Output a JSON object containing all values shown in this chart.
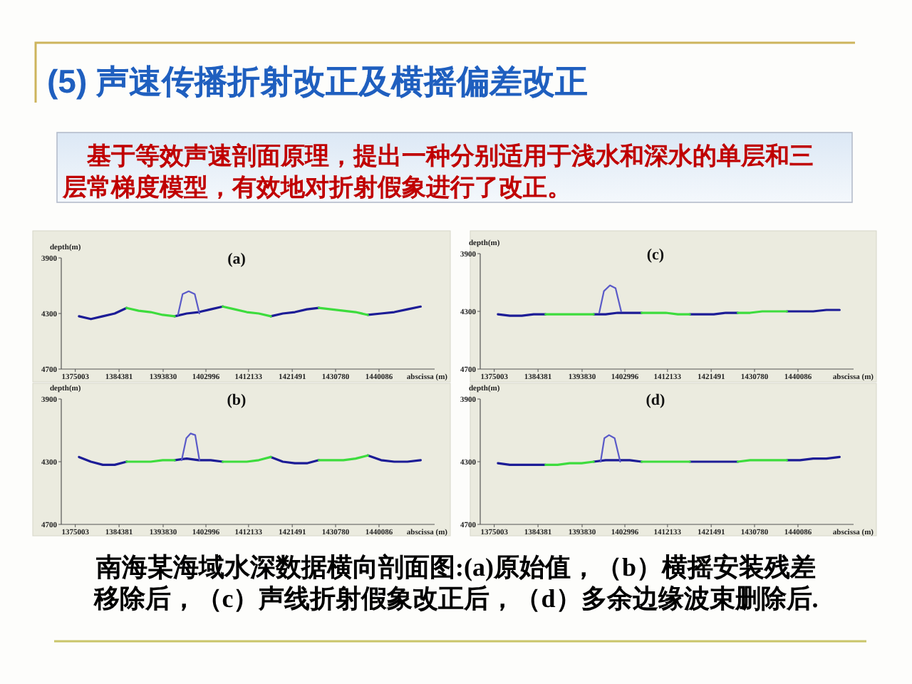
{
  "chart_data": [
    {
      "type": "other",
      "title": "(5) 声速传播折射改正及横摇偏差改正",
      "annotations": [
        "基于等效声速剖面原理，提出一种分别适用于浅水和深水的单层和三层常梯度模型，有效地对折射假象进行了改正。"
      ]
    },
    {
      "type": "line",
      "title": "(a)",
      "xlabel": "abscissa (m)",
      "ylabel": "depth(m)",
      "xlim": [
        1372000,
        1452000
      ],
      "xticks": [
        1375003,
        1384381,
        1393830,
        1402996,
        1412133,
        1421491,
        1430780,
        1440086
      ],
      "ylim": [
        4700,
        3900
      ],
      "yticks": [
        3900,
        4300,
        4700
      ],
      "x": [
        1375800,
        1378350,
        1380900,
        1383450,
        1386000,
        1388575,
        1391150,
        1393725,
        1396300,
        1398875,
        1401450,
        1404025,
        1406600,
        1409175,
        1411750,
        1414325,
        1416900,
        1419475,
        1422050,
        1424625,
        1427200,
        1429825,
        1432450,
        1435075,
        1437700,
        1440525,
        1443350,
        1446175,
        1449000
      ],
      "series": [
        {
          "color": "#1c1c96",
          "values": [
            4320,
            4340,
            4320,
            4300,
            4260,
            null,
            null,
            null,
            4320,
            4300,
            4290,
            4270,
            4250,
            null,
            null,
            null,
            4320,
            4300,
            4290,
            4270,
            4260,
            null,
            null,
            null,
            4310,
            4300,
            4290,
            4270,
            4250
          ]
        },
        {
          "color": "#3ddc3d",
          "values": [
            null,
            null,
            null,
            null,
            4260,
            4280,
            4290,
            4310,
            4320,
            null,
            null,
            null,
            4250,
            4270,
            4290,
            4300,
            4320,
            null,
            null,
            null,
            4260,
            4270,
            4280,
            4290,
            4310,
            null,
            null,
            null,
            null
          ]
        },
        {
          "color": "#5a5ac8",
          "x": [
            1397000,
            1398000,
            1399300,
            1400600,
            1401600
          ],
          "values": [
            4310,
            4160,
            4140,
            4160,
            4300
          ]
        }
      ]
    },
    {
      "type": "line",
      "title": "(c)",
      "xlabel": "abscissa (m)",
      "ylabel": "depth(m)",
      "xlim": [
        1372000,
        1452000
      ],
      "xticks": [
        1375003,
        1384381,
        1393830,
        1402996,
        1412133,
        1421491,
        1430780,
        1440086
      ],
      "ylim": [
        4700,
        3900
      ],
      "yticks": [
        3900,
        4300,
        4700
      ],
      "x": [
        1375800,
        1378350,
        1380900,
        1383450,
        1386000,
        1388575,
        1391150,
        1393725,
        1396300,
        1398875,
        1401450,
        1404025,
        1406600,
        1409175,
        1411750,
        1414325,
        1416900,
        1419475,
        1422050,
        1424625,
        1427200,
        1429825,
        1432450,
        1435075,
        1437700,
        1440525,
        1443350,
        1446175,
        1449000
      ],
      "series": [
        {
          "color": "#1c1c96",
          "values": [
            4320,
            4330,
            4330,
            4320,
            4320,
            null,
            null,
            null,
            4320,
            4320,
            4310,
            4310,
            4310,
            null,
            null,
            null,
            4320,
            4320,
            4320,
            4310,
            4310,
            null,
            null,
            null,
            4300,
            4300,
            4300,
            4290,
            4290
          ]
        },
        {
          "color": "#3ddc3d",
          "values": [
            null,
            null,
            null,
            null,
            4320,
            4320,
            4320,
            4320,
            4320,
            null,
            null,
            null,
            4310,
            4310,
            4310,
            4320,
            4320,
            null,
            null,
            null,
            4310,
            4310,
            4300,
            4300,
            4300,
            null,
            null,
            null,
            null
          ]
        },
        {
          "color": "#5a5ac8",
          "x": [
            1397500,
            1398500,
            1399800,
            1401000,
            1402200
          ],
          "values": [
            4310,
            4160,
            4120,
            4140,
            4300
          ]
        }
      ]
    },
    {
      "type": "line",
      "title": "(b)",
      "xlabel": "abscissa (m)",
      "ylabel": "depth(m)",
      "xlim": [
        1372000,
        1452000
      ],
      "xticks": [
        1375003,
        1384381,
        1393830,
        1402996,
        1412133,
        1421491,
        1430780,
        1440086
      ],
      "ylim": [
        4700,
        3900
      ],
      "yticks": [
        3900,
        4300,
        4700
      ],
      "x": [
        1375800,
        1378350,
        1380900,
        1383450,
        1386000,
        1388575,
        1391150,
        1393725,
        1396300,
        1398875,
        1401450,
        1404025,
        1406600,
        1409175,
        1411750,
        1414325,
        1416900,
        1419475,
        1422050,
        1424625,
        1427200,
        1429825,
        1432450,
        1435075,
        1437700,
        1440525,
        1443350,
        1446175,
        1449000
      ],
      "series": [
        {
          "color": "#1c1c96",
          "values": [
            4270,
            4300,
            4320,
            4320,
            4300,
            null,
            null,
            null,
            4290,
            4280,
            4290,
            4290,
            4300,
            null,
            null,
            null,
            4270,
            4300,
            4310,
            4310,
            4290,
            null,
            null,
            null,
            4260,
            4290,
            4300,
            4300,
            4290
          ]
        },
        {
          "color": "#3ddc3d",
          "values": [
            null,
            null,
            null,
            null,
            4300,
            4300,
            4300,
            4290,
            4290,
            null,
            null,
            null,
            4300,
            4300,
            4300,
            4290,
            4270,
            null,
            null,
            null,
            4290,
            4290,
            4290,
            4280,
            4260,
            null,
            null,
            null,
            null
          ]
        },
        {
          "color": "#5a5ac8",
          "x": [
            1397800,
            1398800,
            1399700,
            1400700,
            1401600
          ],
          "values": [
            4290,
            4150,
            4120,
            4130,
            4290
          ]
        }
      ]
    },
    {
      "type": "line",
      "title": "(d)",
      "xlabel": "abscissa (m)",
      "ylabel": "depth(m)",
      "xlim": [
        1372000,
        1452000
      ],
      "xticks": [
        1375003,
        1384381,
        1393830,
        1402996,
        1412133,
        1421491,
        1430780,
        1440086
      ],
      "ylim": [
        4700,
        3900
      ],
      "yticks": [
        3900,
        4300,
        4700
      ],
      "x": [
        1375800,
        1378350,
        1380900,
        1383450,
        1386000,
        1388575,
        1391150,
        1393725,
        1396300,
        1398875,
        1401450,
        1404025,
        1406600,
        1409175,
        1411750,
        1414325,
        1416900,
        1419475,
        1422050,
        1424625,
        1427200,
        1429825,
        1432450,
        1435075,
        1437700,
        1440525,
        1443350,
        1446175,
        1449000
      ],
      "series": [
        {
          "color": "#1c1c96",
          "values": [
            4310,
            4320,
            4320,
            4320,
            4320,
            null,
            null,
            null,
            4300,
            4290,
            4290,
            4290,
            4300,
            null,
            null,
            null,
            4300,
            4300,
            4300,
            4300,
            4300,
            null,
            null,
            null,
            4290,
            4290,
            4280,
            4280,
            4270
          ]
        },
        {
          "color": "#3ddc3d",
          "values": [
            null,
            null,
            null,
            null,
            4320,
            4320,
            4310,
            4310,
            4300,
            null,
            null,
            null,
            4300,
            4300,
            4300,
            4300,
            4300,
            null,
            null,
            null,
            4300,
            4290,
            4290,
            4290,
            4290,
            null,
            null,
            null,
            null
          ]
        },
        {
          "color": "#5a5ac8",
          "x": [
            1397800,
            1398600,
            1399600,
            1400800,
            1402000
          ],
          "values": [
            4300,
            4150,
            4130,
            4150,
            4300
          ]
        }
      ]
    },
    {
      "type": "other",
      "annotations": [
        "南海某海域水深数据横向剖面图:(a)原始值，（b）横摇安装残差移除后，（c）声线折射假象改正后，（d）多余边缘波束删除后."
      ]
    }
  ]
}
